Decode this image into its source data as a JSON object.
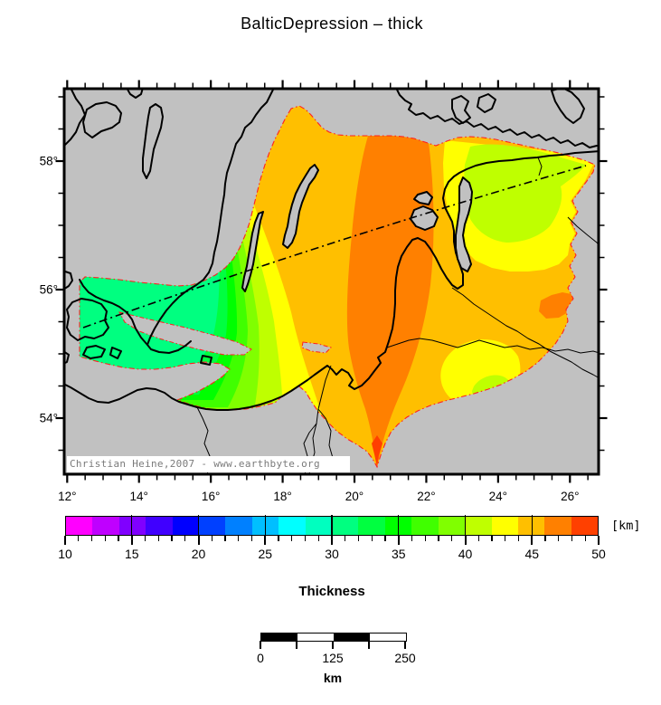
{
  "title": "BalticDepression – thick",
  "map": {
    "background_color": "#c1c1c1",
    "boundary_color": "#ff2020",
    "y_tick_labels": [
      "58°",
      "56°",
      "54°"
    ],
    "x_tick_labels": [
      "12°",
      "14°",
      "16°",
      "18°",
      "20°",
      "22°",
      "24°",
      "26°"
    ],
    "attribution": "Christian Heine,2007 - www.earthbyte.org"
  },
  "colorbar": {
    "unit_label": "[km]",
    "tick_labels": [
      "10",
      "15",
      "20",
      "25",
      "30",
      "35",
      "40",
      "45",
      "50"
    ],
    "min": 10,
    "max": 50,
    "block_step_km": 2,
    "colors": [
      "#ff00ff",
      "#bf00ff",
      "#8000ff",
      "#4000ff",
      "#0000ff",
      "#0040ff",
      "#0080ff",
      "#00bfff",
      "#00ffff",
      "#00ffbf",
      "#00ff80",
      "#00ff40",
      "#00ff00",
      "#40ff00",
      "#80ff00",
      "#bfff00",
      "#ffff00",
      "#ffbf00",
      "#ff8000",
      "#ff4000"
    ]
  },
  "legend_label": "Thickness",
  "scalebar": {
    "tick_labels": [
      "0",
      "125",
      "250"
    ],
    "unit_label": "km",
    "segment_colors": [
      "#000000",
      "#ffffff",
      "#000000",
      "#ffffff"
    ]
  }
}
